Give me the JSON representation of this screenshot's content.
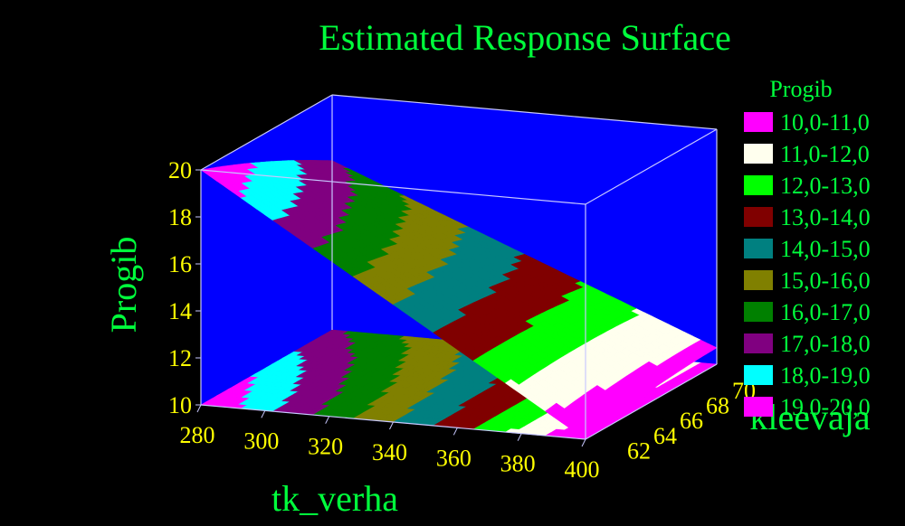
{
  "chart_data": {
    "type": "surface3d",
    "title": "Estimated Response Surface",
    "xlabel": "tk_verha",
    "ylabel": "kleevaja",
    "zlabel": "Progib",
    "x_ticks": [
      "280",
      "300",
      "320",
      "340",
      "360",
      "380",
      "400"
    ],
    "y_ticks": [
      "62",
      "64",
      "66",
      "68",
      "70"
    ],
    "z_ticks": [
      "10",
      "12",
      "14",
      "16",
      "18",
      "20"
    ],
    "xlim": [
      280,
      400
    ],
    "ylim": [
      60,
      70
    ],
    "zlim": [
      10,
      20
    ],
    "legend": {
      "title": "Progib",
      "position": "right",
      "entries": [
        {
          "label": "10,0-11,0",
          "color": "#ff00ff"
        },
        {
          "label": "11,0-12,0",
          "color": "#ffffee"
        },
        {
          "label": "12,0-13,0",
          "color": "#00ff00"
        },
        {
          "label": "13,0-14,0",
          "color": "#800000"
        },
        {
          "label": "14,0-15,0",
          "color": "#008080"
        },
        {
          "label": "15,0-16,0",
          "color": "#808000"
        },
        {
          "label": "16,0-17,0",
          "color": "#008000"
        },
        {
          "label": "17,0-18,0",
          "color": "#800080"
        },
        {
          "label": "18,0-19,0",
          "color": "#00ffff"
        },
        {
          "label": "19,0-20,0",
          "color": "#ff00ff"
        }
      ]
    },
    "colors": {
      "background": "#000000",
      "box": "#0000ff",
      "grid": "#c8c8ff"
    }
  }
}
